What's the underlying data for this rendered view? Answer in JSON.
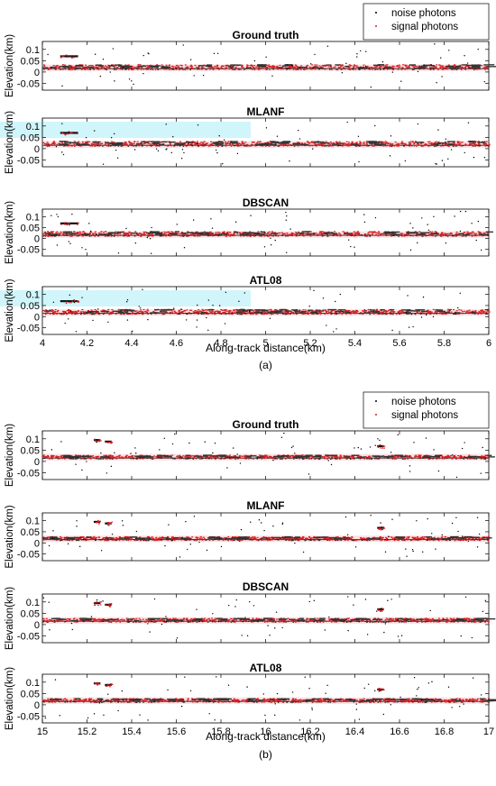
{
  "figure": {
    "colors": {
      "noise": "#000000",
      "signal": "#d62020",
      "signal_band": "#ffc4cc",
      "ground_line": "#444444",
      "axes": "#000000",
      "cyan_artifact": "#a9ecf5"
    },
    "panels": [
      {
        "label": "(a)",
        "legend": {
          "placement": "top-right",
          "items": [
            "noise photons",
            "signal photons"
          ]
        },
        "xlabel": "Along-track distance(km)",
        "xlim": [
          4,
          6
        ],
        "xticks": [
          4,
          4.2,
          4.4,
          4.6,
          4.8,
          5,
          5.2,
          5.4,
          5.6,
          5.8,
          6
        ],
        "xtick_labels": [
          "4",
          "4.2",
          "4.4",
          "4.6",
          "4.8",
          "5",
          "5.2",
          "5.4",
          "5.6",
          "5.8",
          "6"
        ],
        "subplots": [
          {
            "title": "Ground truth",
            "ylabel": "Elevation(km)",
            "ylim": [
              -0.08,
              0.135
            ],
            "yticks": [
              -0.05,
              0,
              0.05,
              0.1
            ],
            "ytick_labels": [
              "-0.05",
              "0",
              "0.05",
              "0.1"
            ],
            "chart_data": {
              "type": "scatter",
              "series": [
                {
                  "name": "noise photons",
                  "marker": "dot"
                },
                {
                  "name": "signal photons",
                  "marker": "dot"
                }
              ],
              "ground_elevation_km": 0.015,
              "canopy_top_range_km": [
                0.02,
                0.035
              ],
              "structures": [
                {
                  "x_range": [
                    4.08,
                    4.16
                  ],
                  "elevation_km": 0.07
                }
              ],
              "cyan_artifact": false
            }
          },
          {
            "title": "MLANF",
            "ylabel": "Elevation(km)",
            "ylim": [
              -0.08,
              0.135
            ],
            "yticks": [
              -0.05,
              0,
              0.05,
              0.1
            ],
            "ytick_labels": [
              "-0.05",
              "0",
              "0.05",
              "0.1"
            ],
            "chart_data": {
              "type": "scatter",
              "series": [
                {
                  "name": "noise photons",
                  "marker": "dot"
                },
                {
                  "name": "signal photons",
                  "marker": "dot"
                }
              ],
              "ground_elevation_km": 0.015,
              "canopy_top_range_km": [
                0.02,
                0.035
              ],
              "structures": [
                {
                  "x_range": [
                    4.08,
                    4.16
                  ],
                  "elevation_km": 0.07
                }
              ],
              "cyan_artifact": true
            }
          },
          {
            "title": "DBSCAN",
            "ylabel": "Elevation(km)",
            "ylim": [
              -0.08,
              0.135
            ],
            "yticks": [
              -0.05,
              0,
              0.05,
              0.1
            ],
            "ytick_labels": [
              "-0.05",
              "0",
              "0.05",
              "0.1"
            ],
            "chart_data": {
              "type": "scatter",
              "series": [
                {
                  "name": "noise photons",
                  "marker": "dot"
                },
                {
                  "name": "signal photons",
                  "marker": "dot"
                }
              ],
              "ground_elevation_km": 0.015,
              "canopy_top_range_km": [
                0.02,
                0.035
              ],
              "structures": [
                {
                  "x_range": [
                    4.08,
                    4.16
                  ],
                  "elevation_km": 0.07
                }
              ],
              "cyan_artifact": false
            }
          },
          {
            "title": "ATL08",
            "ylabel": "Elevation(km)",
            "ylim": [
              -0.08,
              0.135
            ],
            "yticks": [
              -0.05,
              0,
              0.05,
              0.1
            ],
            "ytick_labels": [
              "-0.05",
              "0",
              "0.05",
              "0.1"
            ],
            "chart_data": {
              "type": "scatter",
              "series": [
                {
                  "name": "noise photons",
                  "marker": "dot"
                },
                {
                  "name": "signal photons",
                  "marker": "dot"
                }
              ],
              "ground_elevation_km": 0.015,
              "canopy_top_range_km": [
                0.02,
                0.035
              ],
              "structures": [
                {
                  "x_range": [
                    4.08,
                    4.16
                  ],
                  "elevation_km": 0.07
                }
              ],
              "cyan_artifact": true
            }
          }
        ]
      },
      {
        "label": "(b)",
        "legend": {
          "placement": "top-right",
          "items": [
            "noise photons",
            "signal photons"
          ]
        },
        "xlabel": "Along-track distance(km)",
        "xlim": [
          15,
          17
        ],
        "xticks": [
          15,
          15.2,
          15.4,
          15.6,
          15.8,
          16,
          16.2,
          16.4,
          16.6,
          16.8,
          17
        ],
        "xtick_labels": [
          "15",
          "15.2",
          "15.4",
          "15.6",
          "15.8",
          "16",
          "16.2",
          "16.4",
          "16.6",
          "16.8",
          "17"
        ],
        "subplots": [
          {
            "title": "Ground truth",
            "ylabel": "Elevation(km)",
            "ylim": [
              -0.08,
              0.135
            ],
            "yticks": [
              -0.05,
              0,
              0.05,
              0.1
            ],
            "ytick_labels": [
              "-0.05",
              "0",
              "0.05",
              "0.1"
            ],
            "chart_data": {
              "type": "scatter",
              "series": [
                {
                  "name": "noise photons",
                  "marker": "dot"
                },
                {
                  "name": "signal photons",
                  "marker": "dot"
                }
              ],
              "ground_elevation_km": 0.015,
              "canopy_top_range_km": [
                0.02,
                0.03
              ],
              "structures": [
                {
                  "x_range": [
                    15.23,
                    15.26
                  ],
                  "elevation_km": 0.095
                },
                {
                  "x_range": [
                    15.28,
                    15.31
                  ],
                  "elevation_km": 0.088
                },
                {
                  "x_range": [
                    16.5,
                    16.53
                  ],
                  "elevation_km": 0.068
                }
              ],
              "cyan_artifact": false
            }
          },
          {
            "title": "MLANF",
            "ylabel": "Elevation(km)",
            "ylim": [
              -0.08,
              0.135
            ],
            "yticks": [
              -0.05,
              0,
              0.05,
              0.1
            ],
            "ytick_labels": [
              "-0.05",
              "0",
              "0.05",
              "0.1"
            ],
            "chart_data": {
              "type": "scatter",
              "series": [
                {
                  "name": "noise photons",
                  "marker": "dot"
                },
                {
                  "name": "signal photons",
                  "marker": "dot"
                }
              ],
              "ground_elevation_km": 0.015,
              "canopy_top_range_km": [
                0.02,
                0.03
              ],
              "structures": [
                {
                  "x_range": [
                    15.23,
                    15.26
                  ],
                  "elevation_km": 0.095
                },
                {
                  "x_range": [
                    15.28,
                    15.31
                  ],
                  "elevation_km": 0.088
                },
                {
                  "x_range": [
                    16.5,
                    16.53
                  ],
                  "elevation_km": 0.068
                }
              ],
              "cyan_artifact": false
            }
          },
          {
            "title": "DBSCAN",
            "ylabel": "Elevation(km)",
            "ylim": [
              -0.08,
              0.135
            ],
            "yticks": [
              -0.05,
              0,
              0.05,
              0.1
            ],
            "ytick_labels": [
              "-0.05",
              "0",
              "0.05",
              "0.1"
            ],
            "chart_data": {
              "type": "scatter",
              "series": [
                {
                  "name": "noise photons",
                  "marker": "dot"
                },
                {
                  "name": "signal photons",
                  "marker": "dot"
                }
              ],
              "ground_elevation_km": 0.015,
              "canopy_top_range_km": [
                0.02,
                0.03
              ],
              "structures": [
                {
                  "x_range": [
                    15.23,
                    15.26
                  ],
                  "elevation_km": 0.095
                },
                {
                  "x_range": [
                    15.28,
                    15.31
                  ],
                  "elevation_km": 0.088
                },
                {
                  "x_range": [
                    16.5,
                    16.53
                  ],
                  "elevation_km": 0.068
                }
              ],
              "cyan_artifact": false
            }
          },
          {
            "title": "ATL08",
            "ylabel": "Elevation(km)",
            "ylim": [
              -0.08,
              0.135
            ],
            "yticks": [
              -0.05,
              0,
              0.05,
              0.1
            ],
            "ytick_labels": [
              "-0.05",
              "0",
              "0.05",
              "0.1"
            ],
            "chart_data": {
              "type": "scatter",
              "series": [
                {
                  "name": "noise photons",
                  "marker": "dot"
                },
                {
                  "name": "signal photons",
                  "marker": "dot"
                }
              ],
              "ground_elevation_km": 0.015,
              "canopy_top_range_km": [
                0.02,
                0.03
              ],
              "structures": [
                {
                  "x_range": [
                    15.23,
                    15.26
                  ],
                  "elevation_km": 0.095
                },
                {
                  "x_range": [
                    15.28,
                    15.31
                  ],
                  "elevation_km": 0.088
                },
                {
                  "x_range": [
                    16.5,
                    16.53
                  ],
                  "elevation_km": 0.068
                }
              ],
              "cyan_artifact": false
            }
          }
        ]
      }
    ]
  }
}
